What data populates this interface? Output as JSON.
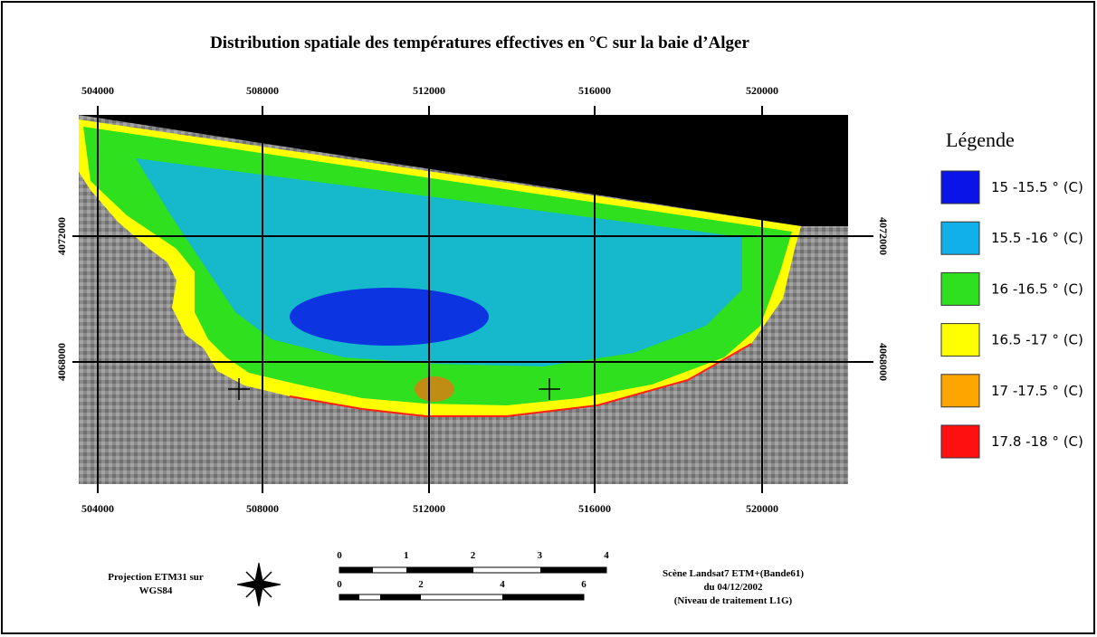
{
  "title": "Distribution spatiale des températures effectives en °C sur la baie d’Alger",
  "grid_labels": {
    "top": [
      "504000",
      "508000",
      "512000",
      "516000",
      "520000"
    ],
    "bottom": [
      "504000",
      "508000",
      "512000",
      "516000",
      "520000"
    ],
    "left": [
      "4072000",
      "4068000"
    ],
    "right": [
      "4072000",
      "4068000"
    ]
  },
  "legend": {
    "title": "Légende",
    "items": [
      {
        "label": "15 -15.5 ° (C)",
        "color": "#0a14e6"
      },
      {
        "label": "15.5 -16 ° (C)",
        "color": "#12b0ea"
      },
      {
        "label": "16 -16.5 ° (C)",
        "color": "#2ee01e"
      },
      {
        "label": "16.5 -17 ° (C)",
        "color": "#ffff00"
      },
      {
        "label": "17 -17.5 ° (C)",
        "color": "#ffa500"
      },
      {
        "label": "17.8 -18 ° (C)",
        "color": "#ff1010"
      }
    ]
  },
  "projection": [
    "Projection ETM31 sur",
    "WGS84"
  ],
  "scale": {
    "km": [
      "0",
      "1",
      "2",
      "3",
      "4"
    ],
    "miles": [
      "0",
      "2",
      "4",
      "6"
    ]
  },
  "scene": [
    "Scène Landsat7 ETM+(Bande61)",
    "du 04/12/2002",
    "(Niveau de traitement  L1G)"
  ]
}
